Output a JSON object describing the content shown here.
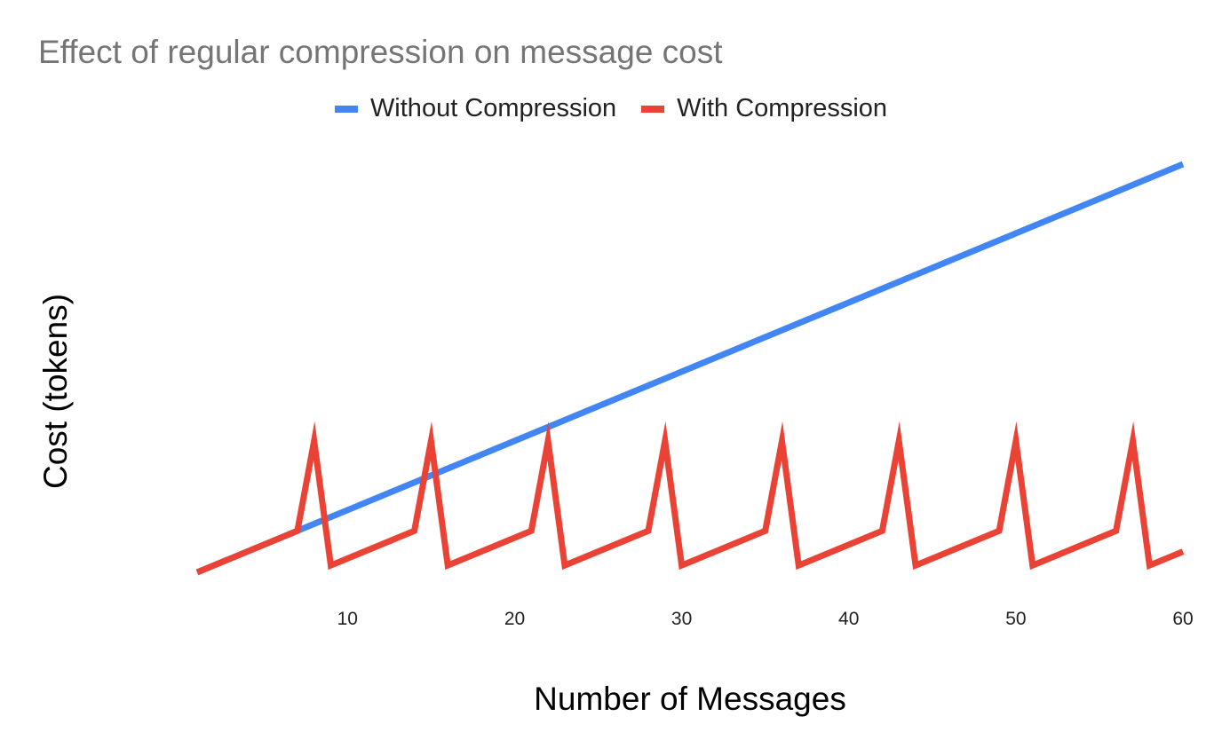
{
  "chart_data": {
    "type": "line",
    "title": "Effect of regular compression on message cost",
    "xlabel": "Number of Messages",
    "ylabel": "Cost (tokens)",
    "xlim": [
      1,
      60
    ],
    "ylim": [
      0,
      130
    ],
    "x_ticks": [
      10,
      20,
      30,
      40,
      50,
      60
    ],
    "y_ticks_shown": false,
    "grid": false,
    "legend_position": "top",
    "colors": {
      "without": "#4285F4",
      "with": "#EA4335"
    },
    "series": [
      {
        "name": "Without Compression",
        "x": [
          1,
          60
        ],
        "y": [
          0,
          118
        ]
      },
      {
        "name": "With Compression",
        "x": [
          1,
          7,
          8,
          9,
          14,
          15,
          16,
          21,
          22,
          23,
          28,
          29,
          30,
          35,
          36,
          37,
          42,
          43,
          44,
          49,
          50,
          51,
          56,
          57,
          58,
          60
        ],
        "y": [
          0,
          12,
          38,
          2,
          12,
          38,
          2,
          12,
          38,
          2,
          12,
          38,
          2,
          12,
          38,
          2,
          12,
          38,
          2,
          12,
          38,
          2,
          12,
          38,
          2,
          6
        ]
      }
    ]
  }
}
